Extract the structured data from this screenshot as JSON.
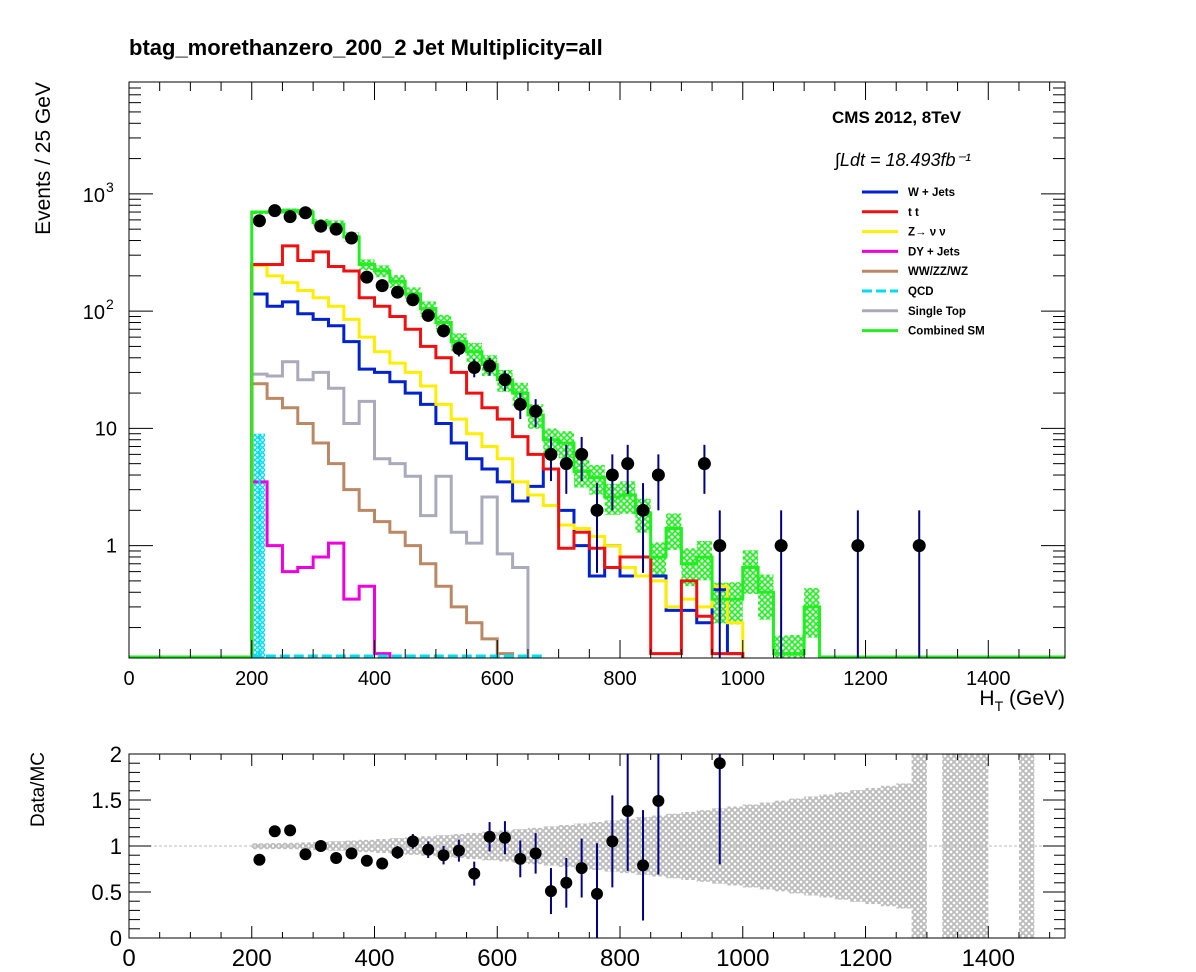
{
  "chart_data": [
    {
      "type": "line",
      "title": "btag_morethanzero_200_2    Jet Multiplicity=all",
      "xlabel": "H",
      "xlabel_sub": "T",
      "xlabel_unit": " (GeV)",
      "ylabel": "Events / 25 GeV",
      "xlim": [
        0,
        1525
      ],
      "ylim": [
        0.11,
        9000
      ],
      "yscale": "log",
      "x_ticks": [
        "0",
        "200",
        "400",
        "600",
        "800",
        "1000",
        "1200",
        "1400"
      ],
      "x_tick_values": [
        0,
        200,
        400,
        600,
        800,
        1000,
        1200,
        1400
      ],
      "y_tick_values": [
        1,
        10,
        100,
        1000
      ],
      "y_ticks": [
        "1",
        "10",
        "10^2",
        "10^3"
      ],
      "annotation_exp": "CMS 2012, 8TeV",
      "annotation_lumi": "∫Ldt = 18.493fb⁻¹",
      "legend_placement": "top-right",
      "bin_width": 25,
      "bin_edges_start": 200,
      "series": [
        {
          "name": "W + Jets",
          "color": "#0022cc",
          "values": [
            140,
            110,
            120,
            95,
            85,
            75,
            55,
            32,
            30,
            25,
            20,
            16,
            11,
            7.5,
            5.5,
            4.5,
            3.5,
            2.4,
            3.2,
            4.5,
            2.0,
            1.0,
            0.55,
            1.0,
            0.55,
            0.55,
            0.55,
            0.28,
            0.28,
            0.22,
            0.42,
            0.12
          ]
        },
        {
          "name": "t  t",
          "color": "#ee1111",
          "values": [
            250,
            250,
            360,
            270,
            320,
            240,
            220,
            130,
            110,
            90,
            70,
            50,
            40,
            30,
            20,
            15,
            12,
            8.5,
            6,
            4.5,
            0.95,
            1.3,
            0.95,
            0.65,
            0.8,
            0.8,
            0.12,
            0.12,
            0.5,
            0.25,
            0.12,
            0.12
          ]
        },
        {
          "name": "Z→ ν ν",
          "color": "#ffee00",
          "values": [
            245,
            200,
            175,
            150,
            130,
            110,
            85,
            60,
            45,
            36,
            30,
            23,
            16,
            12,
            9,
            7,
            5.5,
            3.5,
            2.7,
            2.2,
            1.5,
            1.4,
            1.2,
            1.0,
            0.65,
            0.55,
            0.5,
            0.3,
            0.35,
            0.3,
            0.45,
            0.22
          ]
        },
        {
          "name": "DY + Jets",
          "color": "#ee00dd",
          "values": [
            3.5,
            1.0,
            0.6,
            0.65,
            0.8,
            1.05,
            0.35,
            0.45,
            0.12
          ]
        },
        {
          "name": "WW/ZZ/WZ",
          "color": "#bb8866",
          "values": [
            24,
            18,
            15,
            11,
            7.5,
            5,
            3,
            2.0,
            1.6,
            1.3,
            1.0,
            0.7,
            0.45,
            0.3,
            0.22,
            0.16,
            0.12
          ]
        },
        {
          "name": "QCD",
          "color": "#00ddee",
          "values": [
            9.0
          ]
        },
        {
          "name": "Single Top",
          "color": "#aaaabb",
          "values": [
            29,
            28,
            37,
            26,
            30,
            22,
            11,
            17,
            5.5,
            5.0,
            3.9,
            1.8,
            3.9,
            1.3,
            1.05,
            2.6,
            0.85,
            0.65
          ]
        },
        {
          "name": "Combined SM",
          "color": "#22ee22",
          "values": [
            700,
            700,
            720,
            700,
            570,
            550,
            430,
            250,
            220,
            180,
            140,
            105,
            80,
            55,
            45,
            35,
            26,
            20,
            13,
            8.0,
            7.5,
            4.3,
            3.8,
            2.6,
            2.7,
            1.9,
            0.8,
            1.4,
            0.7,
            0.8,
            0.35,
            0.35,
            0.65,
            0.4,
            0.12,
            0.12,
            0.3
          ]
        }
      ],
      "data_points": {
        "name": "Data",
        "x": [
          212.5,
          237.5,
          262.5,
          287.5,
          312.5,
          337.5,
          362.5,
          387.5,
          412.5,
          437.5,
          462.5,
          487.5,
          512.5,
          537.5,
          562.5,
          587.5,
          612.5,
          637.5,
          662.5,
          687.5,
          712.5,
          737.5,
          762.5,
          787.5,
          812.5,
          837.5,
          862.5,
          937.5,
          962.5,
          1062.5,
          1187.5,
          1287.5
        ],
        "y": [
          590,
          720,
          640,
          690,
          530,
          500,
          420,
          195,
          165,
          145,
          125,
          92,
          68,
          48,
          33,
          34,
          26,
          16,
          14,
          6,
          5,
          6,
          2,
          4,
          5,
          2,
          4,
          5,
          1,
          1,
          1,
          1
        ]
      }
    },
    {
      "type": "scatter",
      "title": "",
      "xlabel": "",
      "ylabel": "Data/MC",
      "xlim": [
        0,
        1525
      ],
      "ylim": [
        0,
        2
      ],
      "x_ticks": [
        "0",
        "200",
        "400",
        "600",
        "800",
        "1000",
        "1200",
        "1400"
      ],
      "x_tick_values": [
        0,
        200,
        400,
        600,
        800,
        1000,
        1200,
        1400
      ],
      "y_ticks": [
        "0",
        "0.5",
        "1",
        "1.5",
        "2"
      ],
      "y_tick_values": [
        0,
        0.5,
        1,
        1.5,
        2
      ],
      "reference_line": 1,
      "data_points": {
        "x": [
          212.5,
          237.5,
          262.5,
          287.5,
          312.5,
          337.5,
          362.5,
          387.5,
          412.5,
          437.5,
          462.5,
          487.5,
          512.5,
          537.5,
          562.5,
          587.5,
          612.5,
          637.5,
          662.5,
          687.5,
          712.5,
          737.5,
          762.5,
          787.5,
          812.5,
          837.5,
          862.5,
          962.5
        ],
        "y": [
          0.85,
          1.16,
          1.17,
          0.91,
          1.0,
          0.87,
          0.92,
          0.84,
          0.81,
          0.93,
          1.05,
          0.96,
          0.9,
          0.95,
          0.7,
          1.1,
          1.09,
          0.86,
          0.92,
          0.51,
          0.6,
          0.76,
          0.48,
          1.05,
          1.38,
          0.79,
          1.49,
          1.9
        ],
        "err": [
          0.04,
          0.04,
          0.04,
          0.04,
          0.04,
          0.045,
          0.05,
          0.06,
          0.065,
          0.07,
          0.08,
          0.09,
          0.1,
          0.12,
          0.13,
          0.16,
          0.18,
          0.2,
          0.22,
          0.25,
          0.27,
          0.32,
          0.55,
          0.5,
          0.65,
          0.6,
          0.8,
          1.1
        ]
      }
    }
  ]
}
